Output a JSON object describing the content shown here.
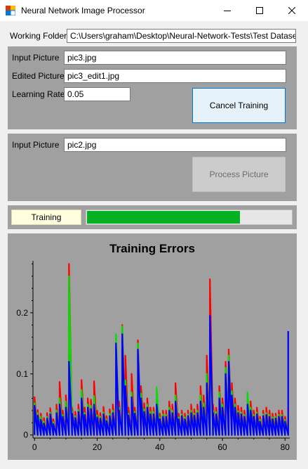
{
  "window": {
    "title": "Neural Network Image Processor",
    "icon": "app-icon",
    "controls": [
      "minimize-icon",
      "maximize-icon",
      "close-icon"
    ]
  },
  "working_folder": {
    "label": "Working Folder",
    "value": "C:\\Users\\graham\\Desktop\\Neural-Network-Tests\\Test Datasets"
  },
  "training": {
    "input_label": "Input Picture",
    "input_value": "pic3.jpg",
    "edited_label": "Edited Picture",
    "edited_value": "pic3_edit1.jpg",
    "rate_label": "Learning Rate",
    "rate_value": "0.05",
    "button_label": "Cancel Training"
  },
  "process": {
    "input_label": "Input Picture",
    "input_value": "pic2.jpg",
    "button_label": "Process Picture"
  },
  "status": {
    "text": "Training",
    "progress_percent": 75
  },
  "colors": {
    "panel": "#a0a0a0",
    "plot_bg": "#a0a0a0",
    "series_blue": "#0000ff",
    "series_green": "#00e000",
    "series_red": "#ff0000",
    "progress": "#06b025"
  },
  "chart_data": {
    "type": "line",
    "title": "Training Errors",
    "xlabel": "",
    "ylabel": "",
    "xlim": [
      -0.5,
      81.5
    ],
    "ylim": [
      -0.005,
      0.285
    ],
    "xticks": [
      0,
      20,
      40,
      60,
      80
    ],
    "xtick_labels": [
      "0",
      "20",
      "40",
      "60",
      "80"
    ],
    "yticks": [
      0,
      0.1,
      0.2
    ],
    "ytick_labels": [
      "0",
      "0.1",
      "0.2"
    ],
    "grid": false,
    "series": [
      {
        "name": "red",
        "color": "#ff0000",
        "values": [
          0.062,
          0.041,
          0.035,
          0.028,
          0.036,
          0.044,
          0.026,
          0.05,
          0.087,
          0.04,
          0.065,
          0.28,
          0.045,
          0.038,
          0.05,
          0.09,
          0.045,
          0.06,
          0.058,
          0.088,
          0.04,
          0.036,
          0.046,
          0.031,
          0.042,
          0.05,
          0.11,
          0.055,
          0.18,
          0.13,
          0.045,
          0.1,
          0.045,
          0.155,
          0.08,
          0.052,
          0.06,
          0.045,
          0.045,
          0.055,
          0.035,
          0.04,
          0.04,
          0.055,
          0.05,
          0.085,
          0.035,
          0.04,
          0.035,
          0.04,
          0.05,
          0.042,
          0.05,
          0.08,
          0.065,
          0.13,
          0.255,
          0.05,
          0.045,
          0.08,
          0.06,
          0.12,
          0.14,
          0.085,
          0.06,
          0.048,
          0.045,
          0.04,
          0.05,
          0.055,
          0.04,
          0.045,
          0.03,
          0.04,
          0.045,
          0.04,
          0.035,
          0.035,
          0.04,
          0.04,
          0.03,
          0.046
        ]
      },
      {
        "name": "green",
        "color": "#00e000",
        "values": [
          0.052,
          0.036,
          0.03,
          0.022,
          0.03,
          0.037,
          0.021,
          0.04,
          0.06,
          0.033,
          0.055,
          0.26,
          0.038,
          0.031,
          0.041,
          0.074,
          0.036,
          0.05,
          0.048,
          0.064,
          0.032,
          0.03,
          0.037,
          0.026,
          0.035,
          0.04,
          0.165,
          0.045,
          0.178,
          0.09,
          0.035,
          0.07,
          0.038,
          0.15,
          0.068,
          0.042,
          0.05,
          0.038,
          0.038,
          0.078,
          0.029,
          0.034,
          0.033,
          0.045,
          0.04,
          0.065,
          0.029,
          0.034,
          0.029,
          0.034,
          0.04,
          0.035,
          0.04,
          0.065,
          0.052,
          0.1,
          0.19,
          0.04,
          0.038,
          0.07,
          0.05,
          0.11,
          0.13,
          0.072,
          0.05,
          0.039,
          0.037,
          0.033,
          0.07,
          0.045,
          0.033,
          0.037,
          0.025,
          0.034,
          0.036,
          0.033,
          0.029,
          0.03,
          0.033,
          0.033,
          0.025,
          0.038
        ]
      },
      {
        "name": "blue",
        "color": "#0000ff",
        "values": [
          0.048,
          0.032,
          0.025,
          0.019,
          0.027,
          0.034,
          0.018,
          0.036,
          0.05,
          0.03,
          0.045,
          0.12,
          0.035,
          0.028,
          0.038,
          0.06,
          0.033,
          0.045,
          0.043,
          0.05,
          0.029,
          0.027,
          0.034,
          0.023,
          0.031,
          0.036,
          0.15,
          0.04,
          0.165,
          0.08,
          0.032,
          0.062,
          0.035,
          0.14,
          0.06,
          0.038,
          0.045,
          0.034,
          0.034,
          0.05,
          0.026,
          0.03,
          0.03,
          0.04,
          0.036,
          0.055,
          0.026,
          0.031,
          0.026,
          0.031,
          0.036,
          0.032,
          0.036,
          0.055,
          0.045,
          0.085,
          0.195,
          0.036,
          0.034,
          0.06,
          0.045,
          0.1,
          0.12,
          0.065,
          0.045,
          0.036,
          0.034,
          0.03,
          0.05,
          0.04,
          0.03,
          0.034,
          0.022,
          0.031,
          0.033,
          0.03,
          0.026,
          0.027,
          0.03,
          0.03,
          0.022,
          0.17
        ]
      }
    ]
  }
}
